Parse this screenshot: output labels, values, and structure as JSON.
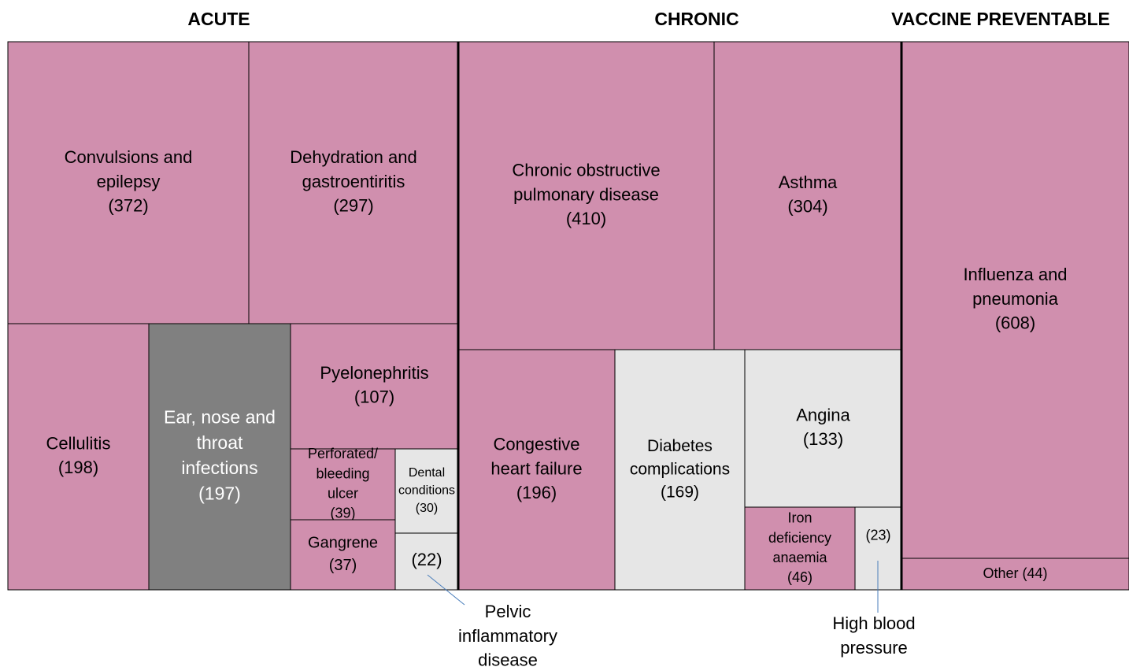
{
  "chart_data": {
    "type": "treemap",
    "groups": [
      {
        "name": "ACUTE",
        "categories": [
          "Convulsions and epilepsy",
          "Dehydration and gastroentiritis",
          "Cellulitis",
          "Ear, nose and throat infections",
          "Pyelonephritis",
          "Perforated/ bleeding ulcer",
          "Dental conditions",
          "Gangrene",
          "Pelvic inflammatory disease"
        ],
        "values": [
          372,
          297,
          198,
          197,
          107,
          39,
          30,
          37,
          22
        ],
        "value_labels": [
          "(372)",
          "(297)",
          "(198)",
          "(197)",
          "(107)",
          "(39)",
          "(30)",
          "(37)",
          "(22)"
        ],
        "colors": [
          "#d08fae",
          "#d08fae",
          "#d08fae",
          "#808080",
          "#d08fae",
          "#d08fae",
          "#e6e6e6",
          "#d08fae",
          "#e6e6e6"
        ]
      },
      {
        "name": "CHRONIC",
        "categories": [
          "Chronic obstructive pulmonary disease",
          "Asthma",
          "Congestive heart failure",
          "Diabetes complications",
          "Angina",
          "Iron deficiency anaemia",
          "High blood pressure"
        ],
        "values": [
          410,
          304,
          196,
          169,
          133,
          46,
          23
        ],
        "value_labels": [
          "(410)",
          "(304)",
          "(196)",
          "(169)",
          "(133)",
          "(46)",
          "(23)"
        ],
        "colors": [
          "#d08fae",
          "#d08fae",
          "#d08fae",
          "#e6e6e6",
          "#e6e6e6",
          "#d08fae",
          "#e6e6e6"
        ]
      },
      {
        "name": "VACCINE PREVENTABLE",
        "categories": [
          "Influenza and pneumonia",
          "Other"
        ],
        "values": [
          608,
          44
        ],
        "value_labels": [
          "(608)",
          "(44)"
        ],
        "colors": [
          "#d08fae",
          "#d08fae"
        ]
      }
    ]
  }
}
